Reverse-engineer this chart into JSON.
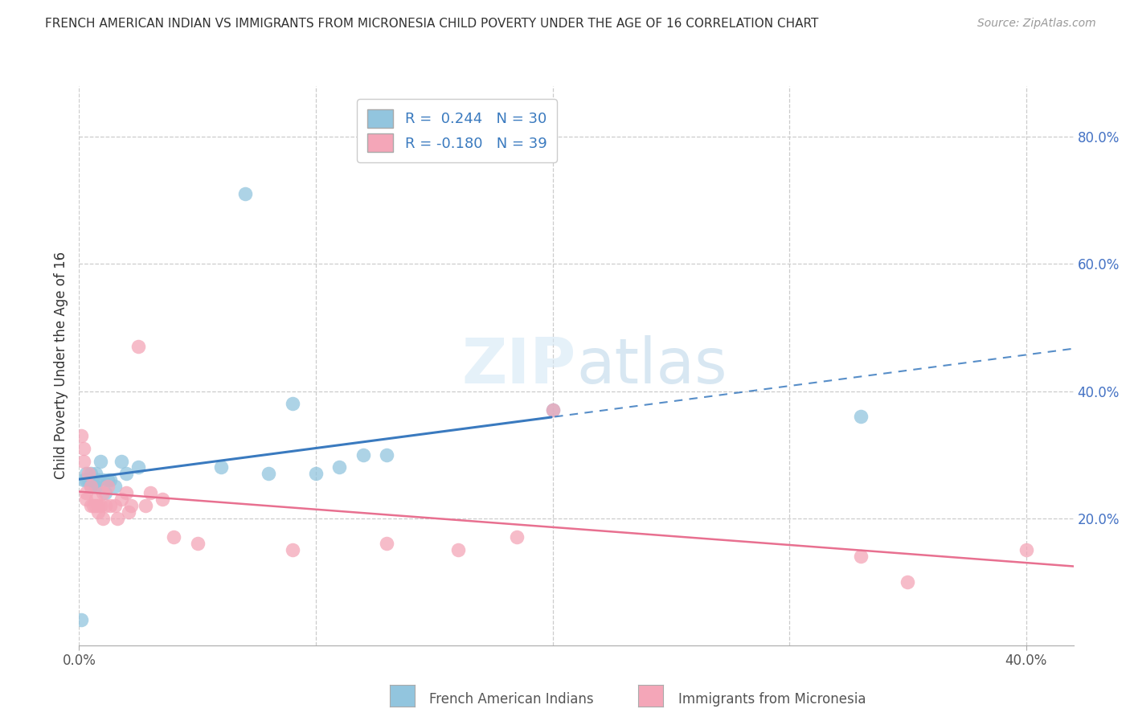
{
  "title": "FRENCH AMERICAN INDIAN VS IMMIGRANTS FROM MICRONESIA CHILD POVERTY UNDER THE AGE OF 16 CORRELATION CHART",
  "source": "Source: ZipAtlas.com",
  "ylabel": "Child Poverty Under the Age of 16",
  "xlim": [
    0.0,
    0.42
  ],
  "ylim": [
    0.0,
    0.88
  ],
  "right_yticks": [
    0.2,
    0.4,
    0.6,
    0.8
  ],
  "right_ytick_labels": [
    "20.0%",
    "40.0%",
    "60.0%",
    "80.0%"
  ],
  "bottom_xtick_labels_left": "0.0%",
  "bottom_xtick_labels_right": "40.0%",
  "series1_label": "French American Indians",
  "series2_label": "Immigrants from Micronesia",
  "series1_R": "0.244",
  "series1_N": "30",
  "series2_R": "-0.180",
  "series2_N": "39",
  "series1_color": "#92c5de",
  "series2_color": "#f4a6b8",
  "series1_line_color": "#3a7abf",
  "series2_line_color": "#e87090",
  "background_color": "#ffffff",
  "series1_x": [
    0.001,
    0.002,
    0.003,
    0.003,
    0.004,
    0.005,
    0.005,
    0.006,
    0.007,
    0.007,
    0.008,
    0.009,
    0.01,
    0.011,
    0.012,
    0.013,
    0.015,
    0.018,
    0.02,
    0.025,
    0.06,
    0.07,
    0.08,
    0.09,
    0.1,
    0.11,
    0.12,
    0.13,
    0.2,
    0.33
  ],
  "series1_y": [
    0.04,
    0.26,
    0.27,
    0.26,
    0.26,
    0.27,
    0.25,
    0.25,
    0.27,
    0.25,
    0.26,
    0.29,
    0.26,
    0.24,
    0.26,
    0.26,
    0.25,
    0.29,
    0.27,
    0.28,
    0.28,
    0.71,
    0.27,
    0.38,
    0.27,
    0.28,
    0.3,
    0.3,
    0.37,
    0.36
  ],
  "series2_x": [
    0.001,
    0.002,
    0.002,
    0.003,
    0.003,
    0.004,
    0.005,
    0.005,
    0.006,
    0.007,
    0.007,
    0.008,
    0.008,
    0.009,
    0.01,
    0.01,
    0.011,
    0.012,
    0.013,
    0.015,
    0.016,
    0.018,
    0.02,
    0.021,
    0.022,
    0.025,
    0.028,
    0.03,
    0.035,
    0.04,
    0.05,
    0.09,
    0.13,
    0.16,
    0.185,
    0.2,
    0.33,
    0.35,
    0.4
  ],
  "series2_y": [
    0.33,
    0.31,
    0.29,
    0.24,
    0.23,
    0.27,
    0.22,
    0.25,
    0.22,
    0.23,
    0.22,
    0.22,
    0.21,
    0.22,
    0.2,
    0.24,
    0.22,
    0.25,
    0.22,
    0.22,
    0.2,
    0.23,
    0.24,
    0.21,
    0.22,
    0.47,
    0.22,
    0.24,
    0.23,
    0.17,
    0.16,
    0.15,
    0.16,
    0.15,
    0.17,
    0.37,
    0.14,
    0.1,
    0.15
  ]
}
